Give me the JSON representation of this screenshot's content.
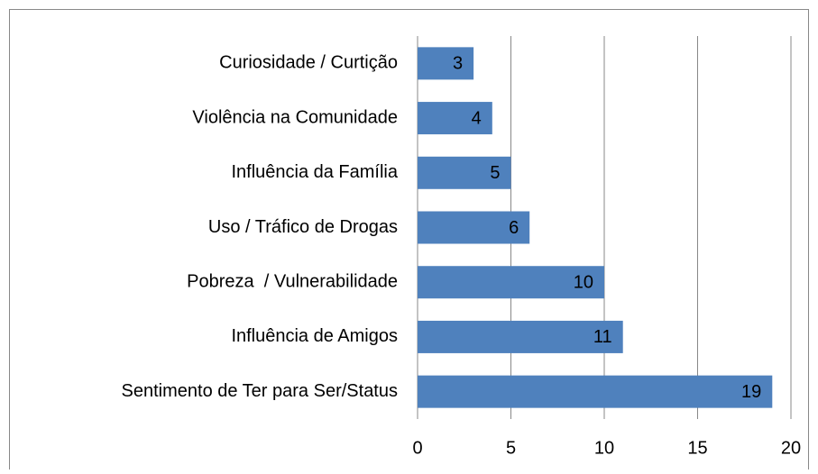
{
  "chart_data": {
    "type": "bar",
    "orientation": "horizontal",
    "categories": [
      "Curiosidade / Curtição",
      "Violência na Comunidade",
      "Influência da Família",
      "Uso / Tráfico de Drogas",
      "Pobreza  / Vulnerabilidade",
      "Influência de Amigos",
      "Sentimento de Ter para Ser/Status"
    ],
    "values": [
      3,
      4,
      5,
      6,
      10,
      11,
      19
    ],
    "color": "#4f81bd",
    "xlim": [
      0,
      20
    ],
    "xticks": [
      0,
      5,
      10,
      15,
      20
    ],
    "grid": true
  }
}
